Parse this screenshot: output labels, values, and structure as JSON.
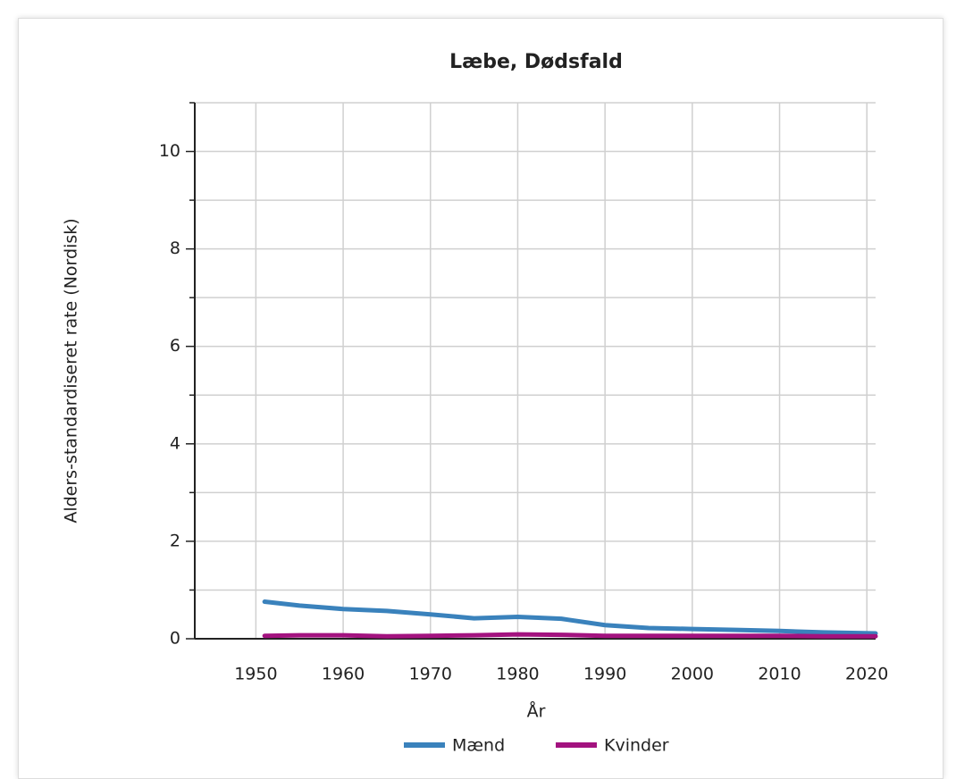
{
  "chart_data": {
    "type": "line",
    "title": "Læbe, Dødsfald",
    "x_label": "År",
    "y_label": "Alders-standardiseret rate (Nordisk)",
    "x": [
      1951,
      1955,
      1960,
      1965,
      1970,
      1975,
      1980,
      1985,
      1990,
      1995,
      2000,
      2005,
      2010,
      2015,
      2021
    ],
    "series": [
      {
        "name": "Mænd",
        "color": "#3a82bc",
        "values": [
          0.76,
          0.68,
          0.61,
          0.57,
          0.5,
          0.42,
          0.45,
          0.41,
          0.28,
          0.22,
          0.2,
          0.18,
          0.16,
          0.13,
          0.11
        ]
      },
      {
        "name": "Kvinder",
        "color": "#a3127f",
        "values": [
          0.06,
          0.07,
          0.07,
          0.05,
          0.06,
          0.07,
          0.09,
          0.08,
          0.06,
          0.06,
          0.06,
          0.06,
          0.06,
          0.05,
          0.05
        ]
      }
    ],
    "xlim": [
      1943,
      2021
    ],
    "xticks": [
      1950,
      1960,
      1970,
      1980,
      1990,
      2000,
      2010,
      2020
    ],
    "ylim": [
      0,
      11
    ],
    "yticks": [
      0,
      2,
      4,
      6,
      8,
      10
    ],
    "yminor": [
      1,
      3,
      5,
      7,
      9,
      11
    ],
    "grid": true,
    "legend": "bottom"
  }
}
